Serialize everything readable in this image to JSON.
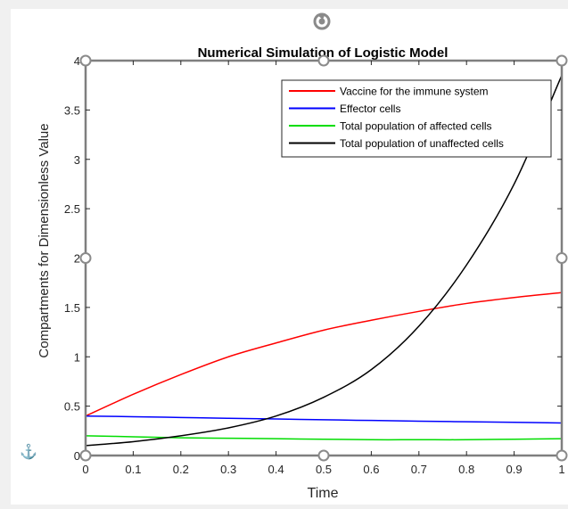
{
  "chart_data": {
    "type": "line",
    "title": "Numerical Simulation of Logistic Model",
    "xlabel": "Time",
    "ylabel": "Compartments for Dimensionless Value",
    "xlim": [
      0,
      1
    ],
    "ylim": [
      0,
      4
    ],
    "xticks": [
      "0",
      "0.1",
      "0.2",
      "0.3",
      "0.4",
      "0.5",
      "0.6",
      "0.7",
      "0.8",
      "0.9",
      "1"
    ],
    "yticks": [
      "0",
      "0.5",
      "1",
      "1.5",
      "2",
      "2.5",
      "3",
      "3.5",
      "4"
    ],
    "grid": false,
    "legend_position": "top-right",
    "x": [
      0,
      0.1,
      0.2,
      0.3,
      0.4,
      0.5,
      0.6,
      0.7,
      0.8,
      0.9,
      1.0
    ],
    "series": [
      {
        "name": "Vaccine for the immune system",
        "color": "#ff0000",
        "values": [
          0.4,
          0.62,
          0.82,
          1.0,
          1.14,
          1.27,
          1.37,
          1.46,
          1.54,
          1.6,
          1.65
        ]
      },
      {
        "name": "Effector cells",
        "color": "#0000ff",
        "values": [
          0.4,
          0.393,
          0.385,
          0.377,
          0.37,
          0.362,
          0.355,
          0.348,
          0.342,
          0.336,
          0.33
        ]
      },
      {
        "name": "Total population of affected cells",
        "color": "#00dd00",
        "values": [
          0.2,
          0.19,
          0.18,
          0.175,
          0.17,
          0.165,
          0.16,
          0.16,
          0.16,
          0.165,
          0.17
        ]
      },
      {
        "name": "Total population of unaffected cells",
        "color": "#000000",
        "values": [
          0.1,
          0.14,
          0.2,
          0.28,
          0.4,
          0.59,
          0.87,
          1.31,
          1.93,
          2.75,
          3.85
        ]
      }
    ]
  },
  "ui": {
    "anchor_icon_glyph": "⚓",
    "rotate_icon": "rotate-icon"
  }
}
